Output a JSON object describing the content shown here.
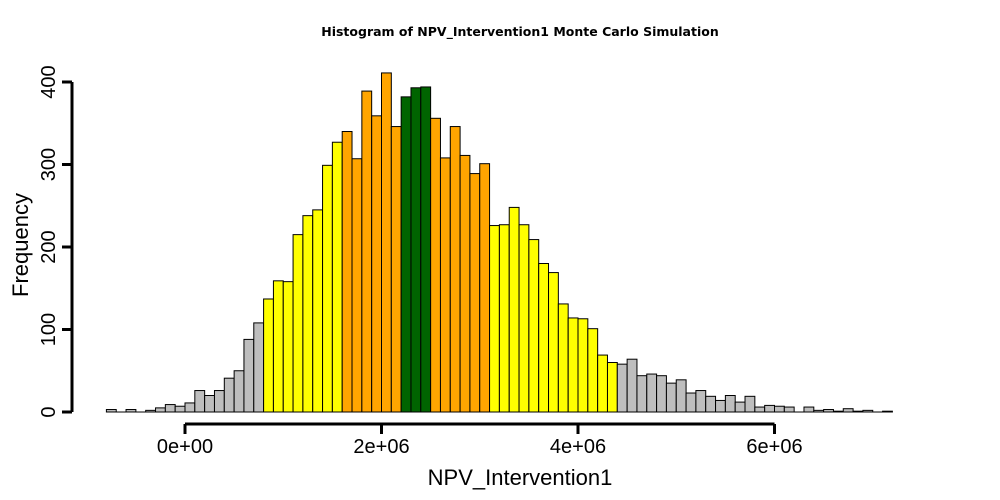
{
  "chart_data": {
    "type": "bar",
    "title": "Histogram of  NPV_Intervention1  Monte Carlo Simulation",
    "xlabel": "NPV_Intervention1",
    "ylabel": "Frequency",
    "x_ticks": [
      0,
      2000000,
      4000000,
      6000000
    ],
    "x_tick_labels": [
      "0e+00",
      "2e+06",
      "4e+06",
      "6e+06"
    ],
    "y_ticks": [
      0,
      100,
      200,
      300,
      400
    ],
    "y_tick_labels": [
      "0",
      "100",
      "200",
      "300",
      "400"
    ],
    "xlim": [
      -900000,
      7600000
    ],
    "ylim": [
      0,
      430
    ],
    "x_axis_range": [
      0,
      6000000
    ],
    "y_axis_range": [
      0,
      400
    ],
    "bin_width": 100000,
    "bin_start": -800000,
    "grid": false,
    "legend": "none",
    "colors": {
      "tail": "#bebebe",
      "middle": "#ffff00",
      "inner": "#ffa500",
      "center": "#006400",
      "outline": "#000000"
    },
    "bars": [
      {
        "x0": -800000,
        "count": 3,
        "color": "tail"
      },
      {
        "x0": -700000,
        "count": 0,
        "color": "tail"
      },
      {
        "x0": -600000,
        "count": 3,
        "color": "tail"
      },
      {
        "x0": -500000,
        "count": 0,
        "color": "tail"
      },
      {
        "x0": -400000,
        "count": 2,
        "color": "tail"
      },
      {
        "x0": -300000,
        "count": 5,
        "color": "tail"
      },
      {
        "x0": -200000,
        "count": 9,
        "color": "tail"
      },
      {
        "x0": -100000,
        "count": 7,
        "color": "tail"
      },
      {
        "x0": 0,
        "count": 11,
        "color": "tail"
      },
      {
        "x0": 100000,
        "count": 26,
        "color": "tail"
      },
      {
        "x0": 200000,
        "count": 20,
        "color": "tail"
      },
      {
        "x0": 300000,
        "count": 26,
        "color": "tail"
      },
      {
        "x0": 400000,
        "count": 41,
        "color": "tail"
      },
      {
        "x0": 500000,
        "count": 50,
        "color": "tail"
      },
      {
        "x0": 600000,
        "count": 88,
        "color": "tail"
      },
      {
        "x0": 700000,
        "count": 108,
        "color": "tail"
      },
      {
        "x0": 800000,
        "count": 137,
        "color": "middle"
      },
      {
        "x0": 900000,
        "count": 159,
        "color": "middle"
      },
      {
        "x0": 1000000,
        "count": 158,
        "color": "middle"
      },
      {
        "x0": 1100000,
        "count": 215,
        "color": "middle"
      },
      {
        "x0": 1200000,
        "count": 238,
        "color": "middle"
      },
      {
        "x0": 1300000,
        "count": 245,
        "color": "middle"
      },
      {
        "x0": 1400000,
        "count": 299,
        "color": "middle"
      },
      {
        "x0": 1500000,
        "count": 327,
        "color": "middle"
      },
      {
        "x0": 1600000,
        "count": 340,
        "color": "inner"
      },
      {
        "x0": 1700000,
        "count": 307,
        "color": "inner"
      },
      {
        "x0": 1800000,
        "count": 389,
        "color": "inner"
      },
      {
        "x0": 1900000,
        "count": 359,
        "color": "inner"
      },
      {
        "x0": 2000000,
        "count": 411,
        "color": "inner"
      },
      {
        "x0": 2100000,
        "count": 346,
        "color": "inner"
      },
      {
        "x0": 2200000,
        "count": 382,
        "color": "center"
      },
      {
        "x0": 2300000,
        "count": 393,
        "color": "center"
      },
      {
        "x0": 2400000,
        "count": 394,
        "color": "center"
      },
      {
        "x0": 2500000,
        "count": 356,
        "color": "inner"
      },
      {
        "x0": 2600000,
        "count": 308,
        "color": "inner"
      },
      {
        "x0": 2700000,
        "count": 346,
        "color": "inner"
      },
      {
        "x0": 2800000,
        "count": 311,
        "color": "inner"
      },
      {
        "x0": 2900000,
        "count": 289,
        "color": "inner"
      },
      {
        "x0": 3000000,
        "count": 301,
        "color": "inner"
      },
      {
        "x0": 3100000,
        "count": 226,
        "color": "middle"
      },
      {
        "x0": 3200000,
        "count": 227,
        "color": "middle"
      },
      {
        "x0": 3300000,
        "count": 248,
        "color": "middle"
      },
      {
        "x0": 3400000,
        "count": 227,
        "color": "middle"
      },
      {
        "x0": 3500000,
        "count": 209,
        "color": "middle"
      },
      {
        "x0": 3600000,
        "count": 180,
        "color": "middle"
      },
      {
        "x0": 3700000,
        "count": 169,
        "color": "middle"
      },
      {
        "x0": 3800000,
        "count": 131,
        "color": "middle"
      },
      {
        "x0": 3900000,
        "count": 114,
        "color": "middle"
      },
      {
        "x0": 4000000,
        "count": 113,
        "color": "middle"
      },
      {
        "x0": 4100000,
        "count": 101,
        "color": "middle"
      },
      {
        "x0": 4200000,
        "count": 69,
        "color": "middle"
      },
      {
        "x0": 4300000,
        "count": 60,
        "color": "middle"
      },
      {
        "x0": 4400000,
        "count": 58,
        "color": "tail"
      },
      {
        "x0": 4500000,
        "count": 64,
        "color": "tail"
      },
      {
        "x0": 4600000,
        "count": 44,
        "color": "tail"
      },
      {
        "x0": 4700000,
        "count": 46,
        "color": "tail"
      },
      {
        "x0": 4800000,
        "count": 44,
        "color": "tail"
      },
      {
        "x0": 4900000,
        "count": 35,
        "color": "tail"
      },
      {
        "x0": 5000000,
        "count": 39,
        "color": "tail"
      },
      {
        "x0": 5100000,
        "count": 23,
        "color": "tail"
      },
      {
        "x0": 5200000,
        "count": 26,
        "color": "tail"
      },
      {
        "x0": 5300000,
        "count": 19,
        "color": "tail"
      },
      {
        "x0": 5400000,
        "count": 14,
        "color": "tail"
      },
      {
        "x0": 5500000,
        "count": 20,
        "color": "tail"
      },
      {
        "x0": 5600000,
        "count": 12,
        "color": "tail"
      },
      {
        "x0": 5700000,
        "count": 19,
        "color": "tail"
      },
      {
        "x0": 5800000,
        "count": 6,
        "color": "tail"
      },
      {
        "x0": 5900000,
        "count": 8,
        "color": "tail"
      },
      {
        "x0": 6000000,
        "count": 7,
        "color": "tail"
      },
      {
        "x0": 6100000,
        "count": 6,
        "color": "tail"
      },
      {
        "x0": 6200000,
        "count": 0,
        "color": "tail"
      },
      {
        "x0": 6300000,
        "count": 6,
        "color": "tail"
      },
      {
        "x0": 6400000,
        "count": 2,
        "color": "tail"
      },
      {
        "x0": 6500000,
        "count": 3,
        "color": "tail"
      },
      {
        "x0": 6600000,
        "count": 1,
        "color": "tail"
      },
      {
        "x0": 6700000,
        "count": 4,
        "color": "tail"
      },
      {
        "x0": 6800000,
        "count": 1,
        "color": "tail"
      },
      {
        "x0": 6900000,
        "count": 2,
        "color": "tail"
      },
      {
        "x0": 7000000,
        "count": 0,
        "color": "tail"
      },
      {
        "x0": 7100000,
        "count": 1,
        "color": "tail"
      }
    ]
  }
}
